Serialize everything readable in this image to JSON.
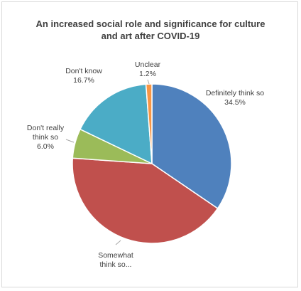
{
  "chart_data": {
    "type": "pie",
    "title_lines": [
      "An increased social role and significance for culture",
      "and art after COVID-19"
    ],
    "slices": [
      {
        "name": "Definitely think so",
        "value": 34.5,
        "label_lines": [
          "Definitely think so",
          "34.5%"
        ],
        "color": "#4f81bd"
      },
      {
        "name": "Somewhat think so",
        "value": 41.6,
        "label_lines": [
          "Somewhat",
          "think so..."
        ],
        "color": "#c0504d"
      },
      {
        "name": "Don't really think so",
        "value": 6.0,
        "label_lines": [
          "Don't really",
          "think so",
          "6.0%"
        ],
        "color": "#9bbb59"
      },
      {
        "name": "Don't know",
        "value": 16.7,
        "label_lines": [
          "Don't know",
          "16.7%"
        ],
        "color": "#4bacc6"
      },
      {
        "name": "Unclear",
        "value": 1.2,
        "label_lines": [
          "Unclear",
          "1.2%"
        ],
        "color": "#f79646"
      }
    ],
    "legend": "none"
  }
}
